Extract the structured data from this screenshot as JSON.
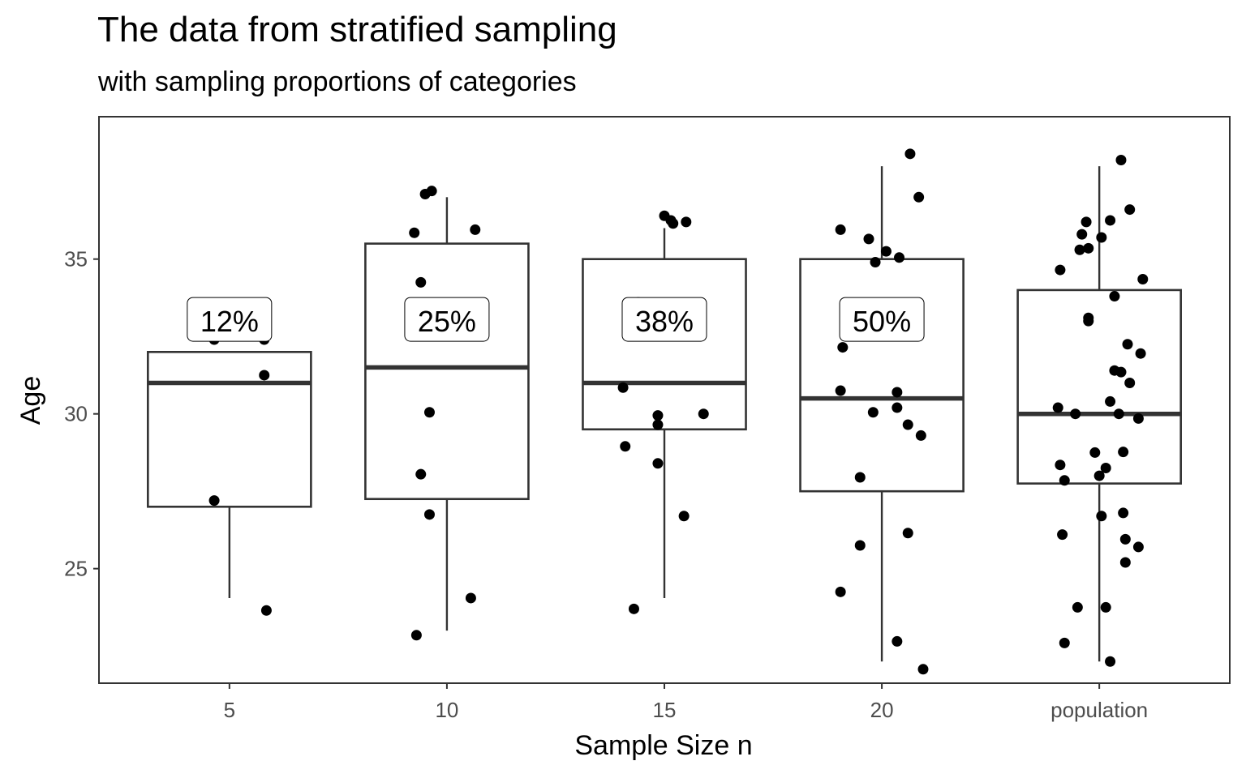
{
  "chart_data": {
    "type": "boxplot",
    "title": "The data from stratified sampling",
    "subtitle": "with sampling proportions of categories",
    "xlabel": "Sample Size n",
    "ylabel": "Age",
    "ylim": [
      21.3,
      39.6
    ],
    "yticks": [
      25,
      30,
      35
    ],
    "ytick_labels": [
      "25",
      "30",
      "35"
    ],
    "grid": false,
    "legend": "none",
    "categories": [
      "5",
      "10",
      "15",
      "20",
      "population"
    ],
    "boxes": [
      {
        "category": "5",
        "whisker_low": 24.05,
        "q1": 27.0,
        "median": 31.0,
        "q3": 32.0,
        "whisker_high": 32.0
      },
      {
        "category": "10",
        "whisker_low": 23.0,
        "q1": 27.25,
        "median": 31.5,
        "q3": 35.5,
        "whisker_high": 37.0
      },
      {
        "category": "15",
        "whisker_low": 24.05,
        "q1": 29.5,
        "median": 31.0,
        "q3": 35.0,
        "whisker_high": 36.0
      },
      {
        "category": "20",
        "whisker_low": 22.0,
        "q1": 27.5,
        "median": 30.5,
        "q3": 35.0,
        "whisker_high": 38.0
      },
      {
        "category": "population",
        "whisker_low": 22.0,
        "q1": 27.75,
        "median": 30.0,
        "q3": 34.0,
        "whisker_high": 38.0
      }
    ],
    "annotations": [
      {
        "category": "5",
        "label": "12%",
        "y": 33.0
      },
      {
        "category": "10",
        "label": "25%",
        "y": 33.0
      },
      {
        "category": "15",
        "label": "38%",
        "y": 33.0
      },
      {
        "category": "20",
        "label": "50%",
        "y": 33.0
      }
    ],
    "points": [
      {
        "category": "5",
        "jitter": -0.07,
        "y": 27.2
      },
      {
        "category": "5",
        "jitter": 0.16,
        "y": 31.25
      },
      {
        "category": "5",
        "jitter": 0.17,
        "y": 23.65
      },
      {
        "category": "5",
        "jitter": -0.07,
        "y": 32.4
      },
      {
        "category": "5",
        "jitter": 0.16,
        "y": 32.4
      },
      {
        "category": "10",
        "jitter": -0.07,
        "y": 37.2
      },
      {
        "category": "10",
        "jitter": -0.15,
        "y": 35.85
      },
      {
        "category": "10",
        "jitter": 0.13,
        "y": 35.95
      },
      {
        "category": "10",
        "jitter": -0.12,
        "y": 34.25
      },
      {
        "category": "10",
        "jitter": -0.08,
        "y": 30.05
      },
      {
        "category": "10",
        "jitter": -0.12,
        "y": 28.05
      },
      {
        "category": "10",
        "jitter": -0.08,
        "y": 26.75
      },
      {
        "category": "10",
        "jitter": 0.11,
        "y": 24.05
      },
      {
        "category": "10",
        "jitter": -0.14,
        "y": 22.85
      },
      {
        "category": "10",
        "jitter": -0.1,
        "y": 37.1
      },
      {
        "category": "15",
        "jitter": 0.0,
        "y": 36.4
      },
      {
        "category": "15",
        "jitter": 0.03,
        "y": 36.25
      },
      {
        "category": "15",
        "jitter": 0.04,
        "y": 36.15
      },
      {
        "category": "15",
        "jitter": 0.1,
        "y": 36.2
      },
      {
        "category": "15",
        "jitter": -0.12,
        "y": 33.6
      },
      {
        "category": "15",
        "jitter": -0.19,
        "y": 30.85
      },
      {
        "category": "15",
        "jitter": -0.03,
        "y": 29.95
      },
      {
        "category": "15",
        "jitter": 0.18,
        "y": 30.0
      },
      {
        "category": "15",
        "jitter": -0.03,
        "y": 29.65
      },
      {
        "category": "15",
        "jitter": -0.18,
        "y": 28.95
      },
      {
        "category": "15",
        "jitter": -0.03,
        "y": 28.4
      },
      {
        "category": "15",
        "jitter": 0.09,
        "y": 26.7
      },
      {
        "category": "15",
        "jitter": -0.14,
        "y": 23.7
      },
      {
        "category": "20",
        "jitter": 0.13,
        "y": 38.4
      },
      {
        "category": "20",
        "jitter": 0.17,
        "y": 37.0
      },
      {
        "category": "20",
        "jitter": -0.19,
        "y": 35.95
      },
      {
        "category": "20",
        "jitter": -0.06,
        "y": 35.65
      },
      {
        "category": "20",
        "jitter": 0.02,
        "y": 35.25
      },
      {
        "category": "20",
        "jitter": 0.08,
        "y": 35.05
      },
      {
        "category": "20",
        "jitter": -0.03,
        "y": 34.9
      },
      {
        "category": "20",
        "jitter": -0.18,
        "y": 32.15
      },
      {
        "category": "20",
        "jitter": -0.19,
        "y": 30.75
      },
      {
        "category": "20",
        "jitter": 0.07,
        "y": 30.7
      },
      {
        "category": "20",
        "jitter": -0.04,
        "y": 30.05
      },
      {
        "category": "20",
        "jitter": 0.07,
        "y": 30.2
      },
      {
        "category": "20",
        "jitter": 0.12,
        "y": 29.65
      },
      {
        "category": "20",
        "jitter": 0.18,
        "y": 29.3
      },
      {
        "category": "20",
        "jitter": -0.1,
        "y": 27.95
      },
      {
        "category": "20",
        "jitter": 0.12,
        "y": 26.15
      },
      {
        "category": "20",
        "jitter": -0.1,
        "y": 25.75
      },
      {
        "category": "20",
        "jitter": -0.19,
        "y": 24.25
      },
      {
        "category": "20",
        "jitter": 0.07,
        "y": 22.65
      },
      {
        "category": "20",
        "jitter": 0.19,
        "y": 21.75
      },
      {
        "category": "population",
        "jitter": 0.1,
        "y": 38.2
      },
      {
        "category": "population",
        "jitter": 0.14,
        "y": 36.6
      },
      {
        "category": "population",
        "jitter": -0.06,
        "y": 36.2
      },
      {
        "category": "population",
        "jitter": 0.05,
        "y": 36.25
      },
      {
        "category": "population",
        "jitter": -0.08,
        "y": 35.8
      },
      {
        "category": "population",
        "jitter": 0.01,
        "y": 35.7
      },
      {
        "category": "population",
        "jitter": -0.09,
        "y": 35.3
      },
      {
        "category": "population",
        "jitter": -0.05,
        "y": 35.35
      },
      {
        "category": "population",
        "jitter": -0.18,
        "y": 34.65
      },
      {
        "category": "population",
        "jitter": 0.2,
        "y": 34.35
      },
      {
        "category": "population",
        "jitter": 0.07,
        "y": 33.8
      },
      {
        "category": "population",
        "jitter": -0.05,
        "y": 33.0
      },
      {
        "category": "population",
        "jitter": -0.05,
        "y": 33.1
      },
      {
        "category": "population",
        "jitter": 0.13,
        "y": 32.25
      },
      {
        "category": "population",
        "jitter": 0.19,
        "y": 31.95
      },
      {
        "category": "population",
        "jitter": 0.07,
        "y": 31.4
      },
      {
        "category": "population",
        "jitter": 0.1,
        "y": 31.35
      },
      {
        "category": "population",
        "jitter": 0.14,
        "y": 31.0
      },
      {
        "category": "population",
        "jitter": 0.05,
        "y": 30.4
      },
      {
        "category": "population",
        "jitter": -0.19,
        "y": 30.2
      },
      {
        "category": "population",
        "jitter": -0.11,
        "y": 30.0
      },
      {
        "category": "population",
        "jitter": 0.09,
        "y": 30.0
      },
      {
        "category": "population",
        "jitter": 0.18,
        "y": 29.85
      },
      {
        "category": "population",
        "jitter": 0.11,
        "y": 28.77
      },
      {
        "category": "population",
        "jitter": -0.02,
        "y": 28.75
      },
      {
        "category": "population",
        "jitter": -0.18,
        "y": 28.35
      },
      {
        "category": "population",
        "jitter": 0.03,
        "y": 28.25
      },
      {
        "category": "population",
        "jitter": 0.0,
        "y": 28.0
      },
      {
        "category": "population",
        "jitter": -0.16,
        "y": 27.85
      },
      {
        "category": "population",
        "jitter": 0.01,
        "y": 26.7
      },
      {
        "category": "population",
        "jitter": 0.11,
        "y": 26.8
      },
      {
        "category": "population",
        "jitter": -0.17,
        "y": 26.1
      },
      {
        "category": "population",
        "jitter": 0.12,
        "y": 25.95
      },
      {
        "category": "population",
        "jitter": 0.18,
        "y": 25.7
      },
      {
        "category": "population",
        "jitter": 0.12,
        "y": 25.2
      },
      {
        "category": "population",
        "jitter": -0.1,
        "y": 23.75
      },
      {
        "category": "population",
        "jitter": 0.03,
        "y": 23.75
      },
      {
        "category": "population",
        "jitter": -0.16,
        "y": 22.6
      },
      {
        "category": "population",
        "jitter": 0.05,
        "y": 22.0
      }
    ]
  }
}
